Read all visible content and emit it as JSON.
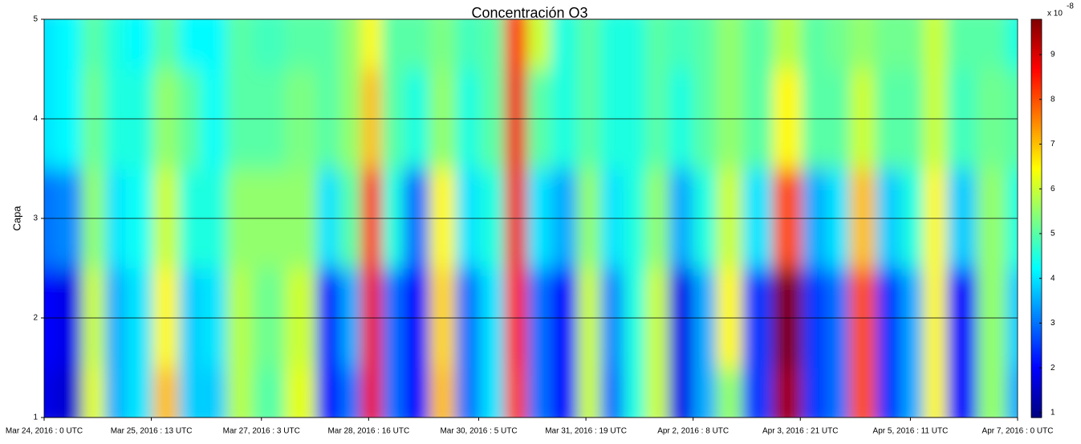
{
  "chart_data": {
    "type": "heatmap",
    "title": "Concentración O3",
    "y_label": "Capa",
    "xlim": [
      0,
      336
    ],
    "xticks": [
      {
        "value": 0,
        "label": "Mar 24, 2016 : 0 UTC"
      },
      {
        "value": 37,
        "label": "Mar 25, 2016 : 13 UTC"
      },
      {
        "value": 75,
        "label": "Mar 27, 2016 : 3 UTC"
      },
      {
        "value": 112,
        "label": "Mar 28, 2016 : 16 UTC"
      },
      {
        "value": 150,
        "label": "Mar 30, 2016 : 5 UTC"
      },
      {
        "value": 187,
        "label": "Mar 31, 2016 : 19 UTC"
      },
      {
        "value": 224,
        "label": "Apr 2, 2016 : 8 UTC"
      },
      {
        "value": 261,
        "label": "Apr 3, 2016 : 21 UTC"
      },
      {
        "value": 299,
        "label": "Apr 5, 2016 : 11 UTC"
      },
      {
        "value": 336,
        "label": "Apr 7, 2016 : 0 UTC"
      }
    ],
    "ylim": [
      1,
      5
    ],
    "yticks": [
      1,
      2,
      3,
      4,
      5
    ],
    "grid": true,
    "x": [
      0,
      8,
      18,
      24,
      32,
      43,
      50,
      58,
      68,
      76,
      90,
      98,
      106,
      113,
      120,
      128,
      138,
      146,
      155,
      163,
      170,
      180,
      188,
      196,
      204,
      211,
      220,
      228,
      236,
      246,
      257,
      266,
      274,
      282,
      292,
      300,
      307,
      316,
      328,
      336
    ],
    "y": [
      1,
      2,
      3,
      4,
      5
    ],
    "z": [
      [
        1.8,
        1.6,
        6.2,
        3.5,
        4.0,
        7.0,
        3.8,
        3.8,
        5.8,
        5.0,
        6.2,
        2.0,
        3.0,
        8.8,
        3.0,
        2.0,
        7.0,
        3.0,
        4.0,
        8.2,
        3.0,
        2.0,
        6.0,
        3.0,
        4.5,
        6.0,
        1.8,
        3.5,
        5.5,
        2.5,
        9.5,
        2.5,
        3.0,
        8.0,
        2.5,
        3.5,
        6.5,
        2.0,
        5.5,
        3.5
      ],
      [
        2.0,
        1.8,
        6.0,
        3.5,
        4.0,
        6.5,
        3.8,
        4.0,
        5.8,
        5.2,
        6.0,
        2.2,
        3.5,
        8.8,
        3.0,
        2.0,
        6.8,
        3.0,
        4.0,
        8.5,
        3.0,
        2.0,
        6.0,
        3.2,
        4.5,
        6.0,
        1.8,
        3.5,
        6.5,
        2.5,
        9.8,
        2.5,
        3.0,
        8.0,
        2.5,
        3.5,
        6.5,
        2.0,
        5.5,
        3.8
      ],
      [
        3.0,
        3.2,
        5.5,
        4.0,
        4.3,
        6.0,
        4.5,
        4.5,
        5.5,
        5.5,
        5.5,
        4.0,
        5.0,
        8.5,
        4.5,
        3.0,
        6.5,
        4.0,
        4.5,
        8.8,
        4.0,
        3.5,
        5.5,
        4.0,
        4.5,
        5.5,
        3.5,
        4.5,
        6.0,
        4.0,
        8.0,
        3.5,
        4.0,
        7.0,
        3.8,
        4.5,
        6.5,
        3.8,
        5.5,
        4.5
      ],
      [
        4.0,
        4.2,
        5.2,
        4.5,
        4.5,
        5.5,
        5.0,
        4.3,
        5.0,
        5.0,
        5.3,
        5.0,
        5.5,
        7.0,
        5.0,
        4.5,
        5.5,
        4.5,
        5.0,
        8.8,
        5.0,
        4.5,
        5.0,
        4.5,
        4.5,
        5.0,
        4.5,
        5.0,
        5.5,
        5.0,
        6.5,
        5.0,
        5.0,
        6.0,
        5.0,
        5.0,
        6.0,
        4.8,
        5.2,
        5.0
      ],
      [
        4.0,
        4.2,
        5.0,
        4.5,
        4.2,
        5.0,
        4.2,
        4.2,
        5.0,
        4.8,
        5.0,
        5.0,
        5.5,
        6.5,
        5.0,
        5.0,
        5.3,
        4.8,
        5.0,
        8.5,
        6.0,
        4.5,
        5.0,
        4.5,
        4.5,
        5.0,
        4.8,
        5.0,
        5.5,
        5.0,
        5.8,
        5.0,
        5.2,
        5.5,
        5.2,
        5.2,
        6.0,
        5.0,
        5.0,
        4.5
      ]
    ],
    "colormap": "jet",
    "colorbar": {
      "lim": [
        0.89,
        9.79
      ],
      "ticks": [
        1,
        2,
        3,
        4,
        5,
        6,
        7,
        8,
        9
      ],
      "multiplier": "x 10",
      "exponent": "-8"
    }
  }
}
